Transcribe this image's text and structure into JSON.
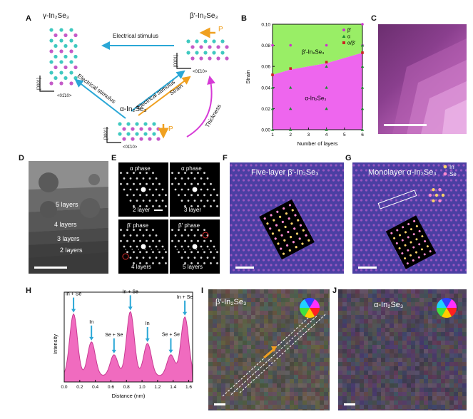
{
  "panels": {
    "A": {
      "letter": "A",
      "gamma_label": "γ-In₂Se₃",
      "beta_label": "β′-In₂Se₃",
      "alpha_label": "α-In₂Se₃",
      "stimulus_top": "Electrical stimulus",
      "stimulus_left": "Electrical stimulus",
      "stimulus_diag": "Electrical stimulus",
      "strain": "Strain",
      "thickness": "Thickness",
      "p_label": "P",
      "axis_0001": "[0001]",
      "axis_0110": "<01̄10>"
    },
    "B": {
      "letter": "B"
    },
    "C": {
      "letter": "C"
    },
    "D": {
      "letter": "D",
      "layers": [
        "5 layers",
        "4 layers",
        "3 layers",
        "2 layers"
      ]
    },
    "E": {
      "letter": "E",
      "tiles": [
        {
          "title": "α phase",
          "caption": "2 layer"
        },
        {
          "title": "α phase",
          "caption": "3 layer"
        },
        {
          "title": "β′ phase",
          "caption": "4 layers"
        },
        {
          "title": "β′ phase",
          "caption": "5 layers"
        }
      ]
    },
    "F": {
      "letter": "F",
      "title": "Five-layer β′-In₂Se₃"
    },
    "G": {
      "letter": "G",
      "title": "Monolayer α-In₂Se₃",
      "legend_in": "In",
      "legend_se": "Se"
    },
    "H": {
      "letter": "H"
    },
    "I": {
      "letter": "I",
      "title": "β′-In₂Se₃"
    },
    "J": {
      "letter": "J",
      "title": "α-In₂Se₃"
    }
  },
  "colors": {
    "alpha_region": "#ee66ee",
    "beta_region": "#99ee66",
    "stem_purple": "#4a3fa0",
    "profile_fill": "#f06bbf",
    "arrow_cyan": "#2aa7d6",
    "arrow_orange": "#f0a020",
    "arrow_magenta": "#d63ad6"
  },
  "chart_data": [
    {
      "type": "scatter",
      "panel": "B",
      "xlabel": "Number of layers",
      "ylabel": "Strain",
      "xlim": [
        1,
        6
      ],
      "ylim": [
        0,
        0.1
      ],
      "xticks": [
        "1",
        "2",
        "3",
        "4",
        "5",
        "6"
      ],
      "yticks": [
        "0.00",
        "0.02",
        "0.04",
        "0.06",
        "0.08",
        "0.10"
      ],
      "region_labels": [
        "β′-In₂Se₃",
        "α-In₂Se₃"
      ],
      "boundary": {
        "x": [
          1,
          2,
          4,
          6
        ],
        "y": [
          0.052,
          0.057,
          0.063,
          0.073
        ]
      },
      "legend_position": "top-right",
      "series": [
        {
          "name": "β′",
          "marker": "circle",
          "color": "#cc33cc",
          "x": [
            1,
            2,
            4,
            6,
            6
          ],
          "y": [
            0.08,
            0.08,
            0.08,
            0.08,
            0.1
          ]
        },
        {
          "name": "α",
          "marker": "triangle",
          "color": "#228833",
          "x": [
            1,
            1,
            1,
            2,
            2,
            2,
            4,
            4,
            4,
            4,
            6,
            6,
            6,
            6,
            6
          ],
          "y": [
            0,
            0.02,
            0.04,
            0,
            0.02,
            0.04,
            0,
            0.02,
            0.04,
            0.06,
            0,
            0.02,
            0.04,
            0.06,
            0.08
          ]
        },
        {
          "name": "α/β′",
          "marker": "square",
          "color": "#cc2222",
          "x": [
            1,
            2,
            4,
            6
          ],
          "y": [
            0.052,
            0.058,
            0.064,
            0.073
          ]
        }
      ]
    },
    {
      "type": "area",
      "panel": "H",
      "xlabel": "Distance (nm)",
      "ylabel": "Intensity",
      "xlim": [
        0,
        1.65
      ],
      "xticks": [
        "0.0",
        "0.2",
        "0.4",
        "0.6",
        "0.8",
        "1.0",
        "1.2",
        "1.4",
        "1.6"
      ],
      "annotations": [
        {
          "text": "In + Se",
          "x": 0.12
        },
        {
          "text": "In",
          "x": 0.35
        },
        {
          "text": "Se + Se",
          "x": 0.64
        },
        {
          "text": "In + Se",
          "x": 0.85
        },
        {
          "text": "In",
          "x": 1.07
        },
        {
          "text": "Se + Se",
          "x": 1.37
        },
        {
          "text": "In + Se",
          "x": 1.55
        }
      ],
      "peaks": [
        {
          "x": 0.12,
          "h": 0.82
        },
        {
          "x": 0.35,
          "h": 0.45
        },
        {
          "x": 0.64,
          "h": 0.28
        },
        {
          "x": 0.85,
          "h": 0.85
        },
        {
          "x": 1.07,
          "h": 0.43
        },
        {
          "x": 1.37,
          "h": 0.28
        },
        {
          "x": 1.55,
          "h": 0.78
        }
      ]
    }
  ]
}
